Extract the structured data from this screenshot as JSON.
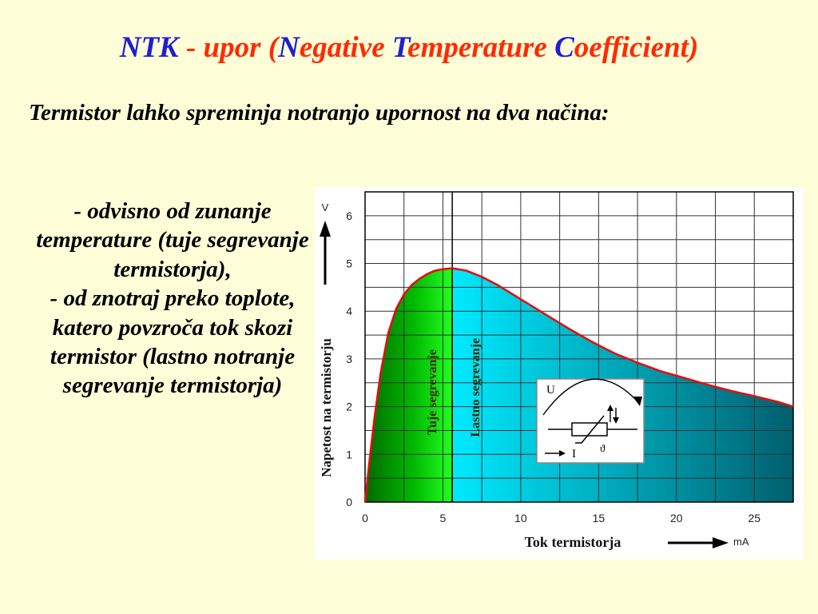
{
  "slide": {
    "title_parts": [
      {
        "text": "NTK",
        "color": "blue"
      },
      {
        "text": " - upor (",
        "color": "red"
      },
      {
        "text": "N",
        "color": "blue"
      },
      {
        "text": "egative ",
        "color": "red"
      },
      {
        "text": "T",
        "color": "blue"
      },
      {
        "text": "emperature ",
        "color": "red"
      },
      {
        "text": "C",
        "color": "blue"
      },
      {
        "text": "oefficient)",
        "color": "red"
      }
    ],
    "intro": "Termistor lahko spreminja notranjo upornost na dva načina:",
    "bullet_1": "- odvisno od zunanje temperature (tuje segrevanje termistorja),",
    "bullet_2": "- od znotraj preko toplote, katero povzroča tok skozi termistor (lastno notranje segrevanje termistorja)"
  },
  "colors": {
    "title_red": "#ff2a00",
    "title_blue": "#1f1fd0",
    "background": "#fdfdd8",
    "curve": "#e01010",
    "region_external": "#00cc00",
    "region_self": "#00c8d8"
  },
  "chart_data": {
    "type": "line",
    "xlabel": "Tok termistorja",
    "x_unit": "mA",
    "ylabel": "Napetost na termistorju",
    "y_unit": "V",
    "xlim": [
      0,
      27.5
    ],
    "ylim": [
      0,
      6.5
    ],
    "x_ticks": [
      0,
      5,
      10,
      15,
      20,
      25
    ],
    "y_ticks": [
      0,
      1,
      2,
      3,
      4,
      5,
      6
    ],
    "grid": true,
    "divider_x": 5.6,
    "series": [
      {
        "x": [
          0,
          0.3,
          0.6,
          1.0,
          1.5,
          2.0,
          2.5,
          3.0,
          3.5,
          4.0,
          4.5,
          5.0,
          5.6,
          6.5,
          7.5,
          8.5,
          10,
          11.5,
          13,
          14.5,
          16,
          17.5,
          19,
          20.5,
          22,
          23.5,
          25,
          26.5,
          27.5
        ],
        "y": [
          0,
          0.9,
          1.75,
          2.7,
          3.55,
          4.05,
          4.35,
          4.55,
          4.68,
          4.78,
          4.85,
          4.88,
          4.9,
          4.85,
          4.72,
          4.55,
          4.25,
          3.95,
          3.65,
          3.37,
          3.12,
          2.92,
          2.74,
          2.6,
          2.46,
          2.33,
          2.22,
          2.1,
          2.0
        ]
      }
    ],
    "regions": [
      {
        "label": "Tuje segrevanje",
        "from": 0,
        "to": 5.6
      },
      {
        "label": "Lastno segrevanje",
        "from": 5.6,
        "to": 27.5
      }
    ],
    "inset": {
      "label_u": "U",
      "label_i": "I",
      "symbol_temp": "ϑ"
    }
  }
}
